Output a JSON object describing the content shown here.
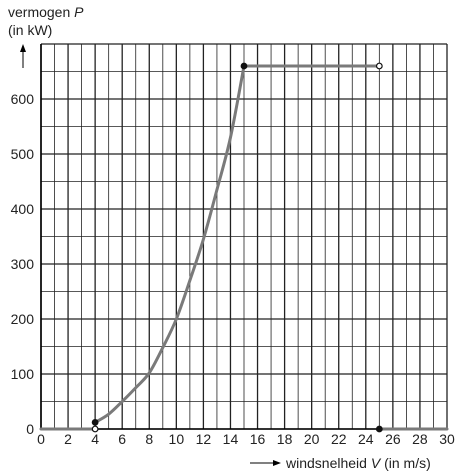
{
  "chart_data": {
    "type": "line",
    "ylabel": "vermogen",
    "ylabel_var": "P",
    "yunit": "(in kW)",
    "xlabel": "windsnelheid",
    "xlabel_var": "V",
    "xunit": "(in m/s)",
    "xlim": [
      0,
      30
    ],
    "ylim": [
      0,
      700
    ],
    "x_ticks": [
      0,
      2,
      4,
      6,
      8,
      10,
      12,
      14,
      16,
      18,
      20,
      22,
      24,
      26,
      28,
      30
    ],
    "y_ticks": [
      0,
      100,
      200,
      300,
      400,
      500,
      600
    ],
    "x_minor_step": 1,
    "y_minor_step": 50,
    "grid": true,
    "series": [
      {
        "values_desc": "zero",
        "x": [
          0,
          4
        ],
        "y": [
          0,
          0
        ]
      },
      {
        "values_desc": "cubic",
        "x": [
          4,
          5,
          6,
          7,
          8,
          9,
          10,
          11,
          12,
          13,
          14,
          15
        ],
        "y": [
          12,
          27,
          50,
          75,
          102,
          148,
          200,
          270,
          345,
          435,
          530,
          660
        ]
      },
      {
        "values_desc": "flat",
        "x": [
          15,
          25
        ],
        "y": [
          660,
          660
        ]
      },
      {
        "values_desc": "zero",
        "x": [
          25,
          30
        ],
        "y": [
          0,
          0
        ]
      }
    ],
    "points": [
      {
        "x": 4,
        "y": 12,
        "filled": true
      },
      {
        "x": 4,
        "y": 0,
        "filled": false
      },
      {
        "x": 15,
        "y": 660,
        "filled": true
      },
      {
        "x": 25,
        "y": 660,
        "filled": false
      },
      {
        "x": 25,
        "y": 0,
        "filled": true
      }
    ],
    "colors": {
      "curve": "#7a7a7a",
      "grid": "#222222",
      "axis": "#000000",
      "point": "#111111"
    }
  }
}
